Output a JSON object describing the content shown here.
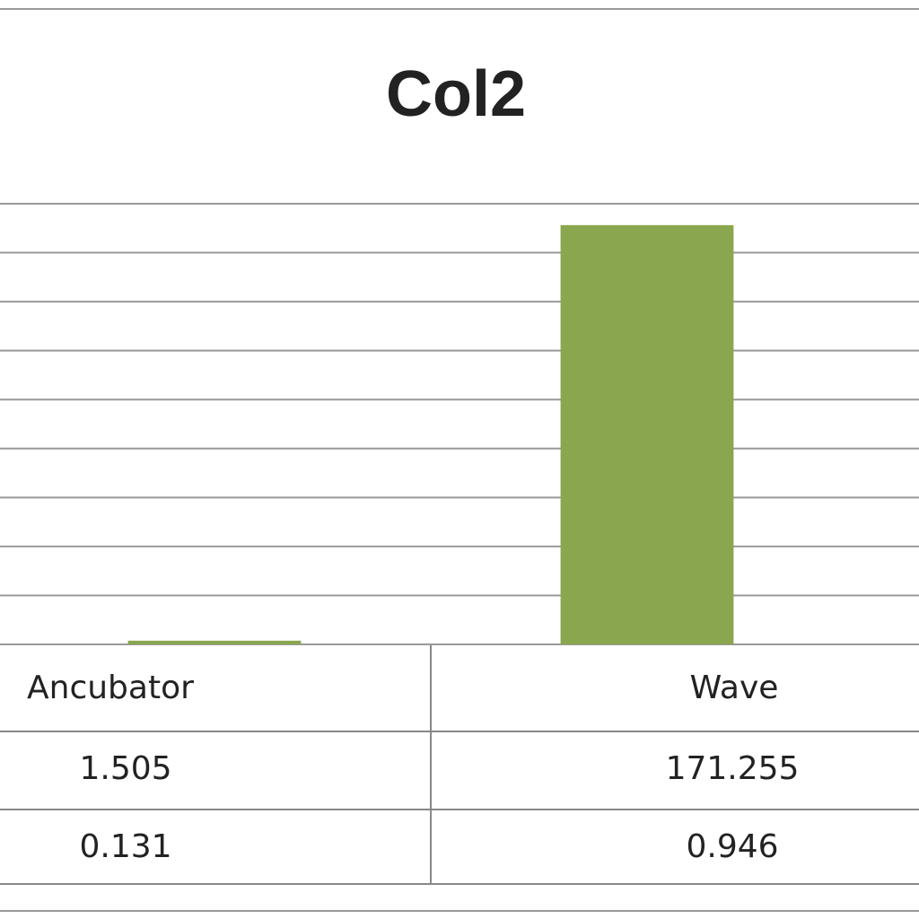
{
  "chart_data": {
    "type": "bar",
    "title": "Col2",
    "categories": [
      "Ancubator",
      "Wave"
    ],
    "series": [
      {
        "color": "#8aa64e",
        "values": [
          1.505,
          171.255
        ]
      },
      {
        "values": [
          0.131,
          0.946
        ]
      }
    ],
    "ylim": [
      0,
      180
    ],
    "yticks": [
      0,
      20,
      40,
      60,
      80,
      100,
      120,
      140,
      160,
      180
    ],
    "grid": true
  }
}
